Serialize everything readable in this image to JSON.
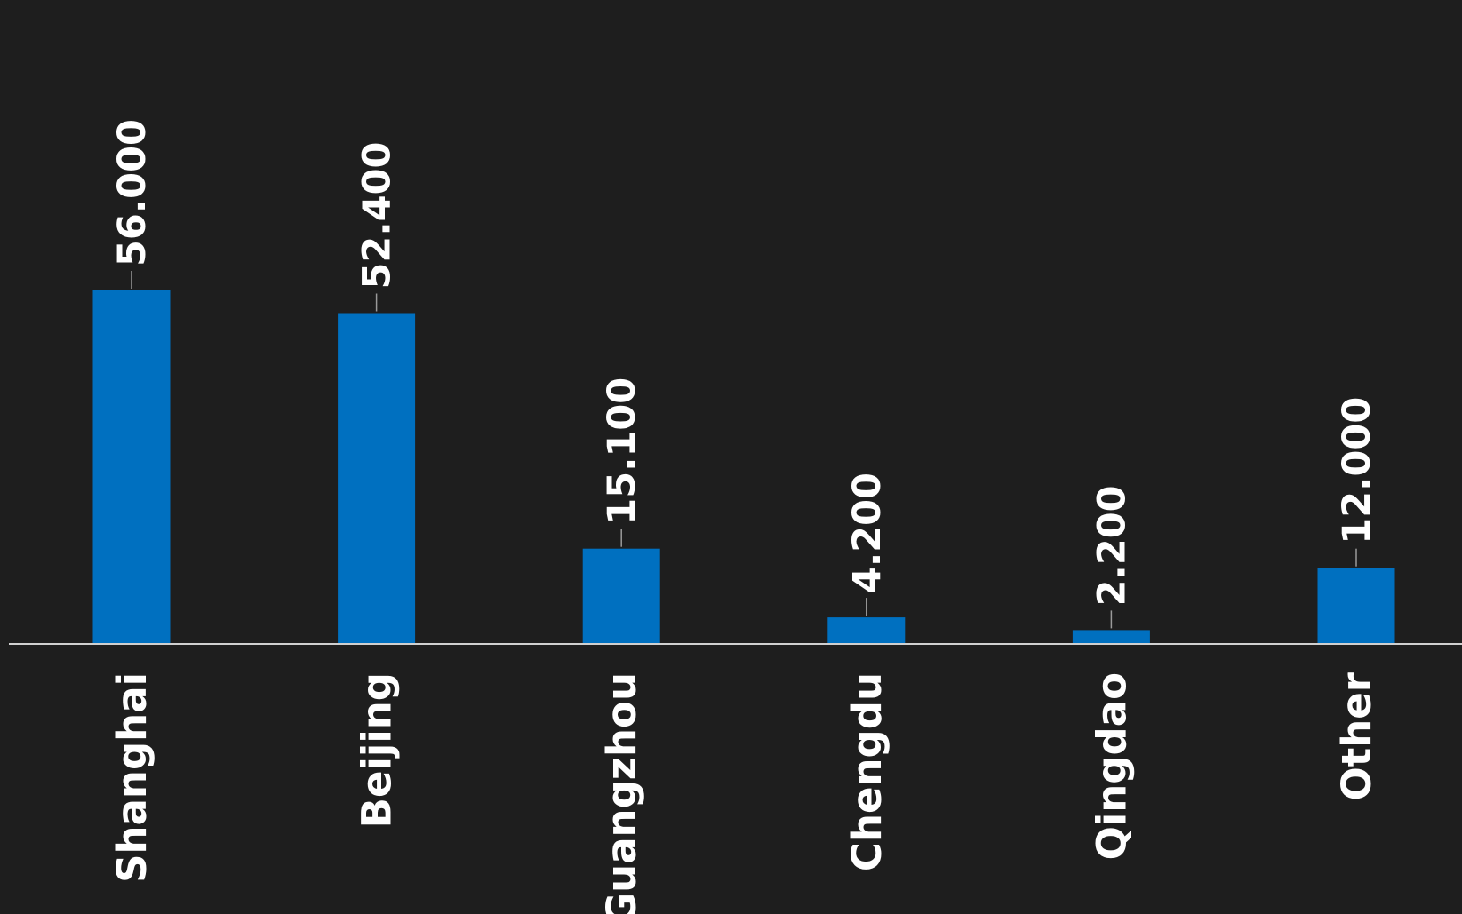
{
  "chart_data": {
    "type": "bar",
    "orientation": "vertical",
    "categories": [
      "Shanghai",
      "Beijing",
      "Guangzhou",
      "Chengdu",
      "Qingdao",
      "Other"
    ],
    "values": [
      56.0,
      52.4,
      15.1,
      4.2,
      2.2,
      12.0
    ],
    "value_labels": [
      "56.000",
      "52.400",
      "15.100",
      "4.200",
      "2.200",
      "12.000"
    ],
    "title": "",
    "xlabel": "",
    "ylabel": "",
    "ylim": [
      0,
      102
    ],
    "grid": false,
    "legend": "none",
    "bar_color": "#0070c0",
    "background_color": "#1e1e1e",
    "text_color": "#ffffff",
    "axis_color": "#d0d0d0"
  }
}
